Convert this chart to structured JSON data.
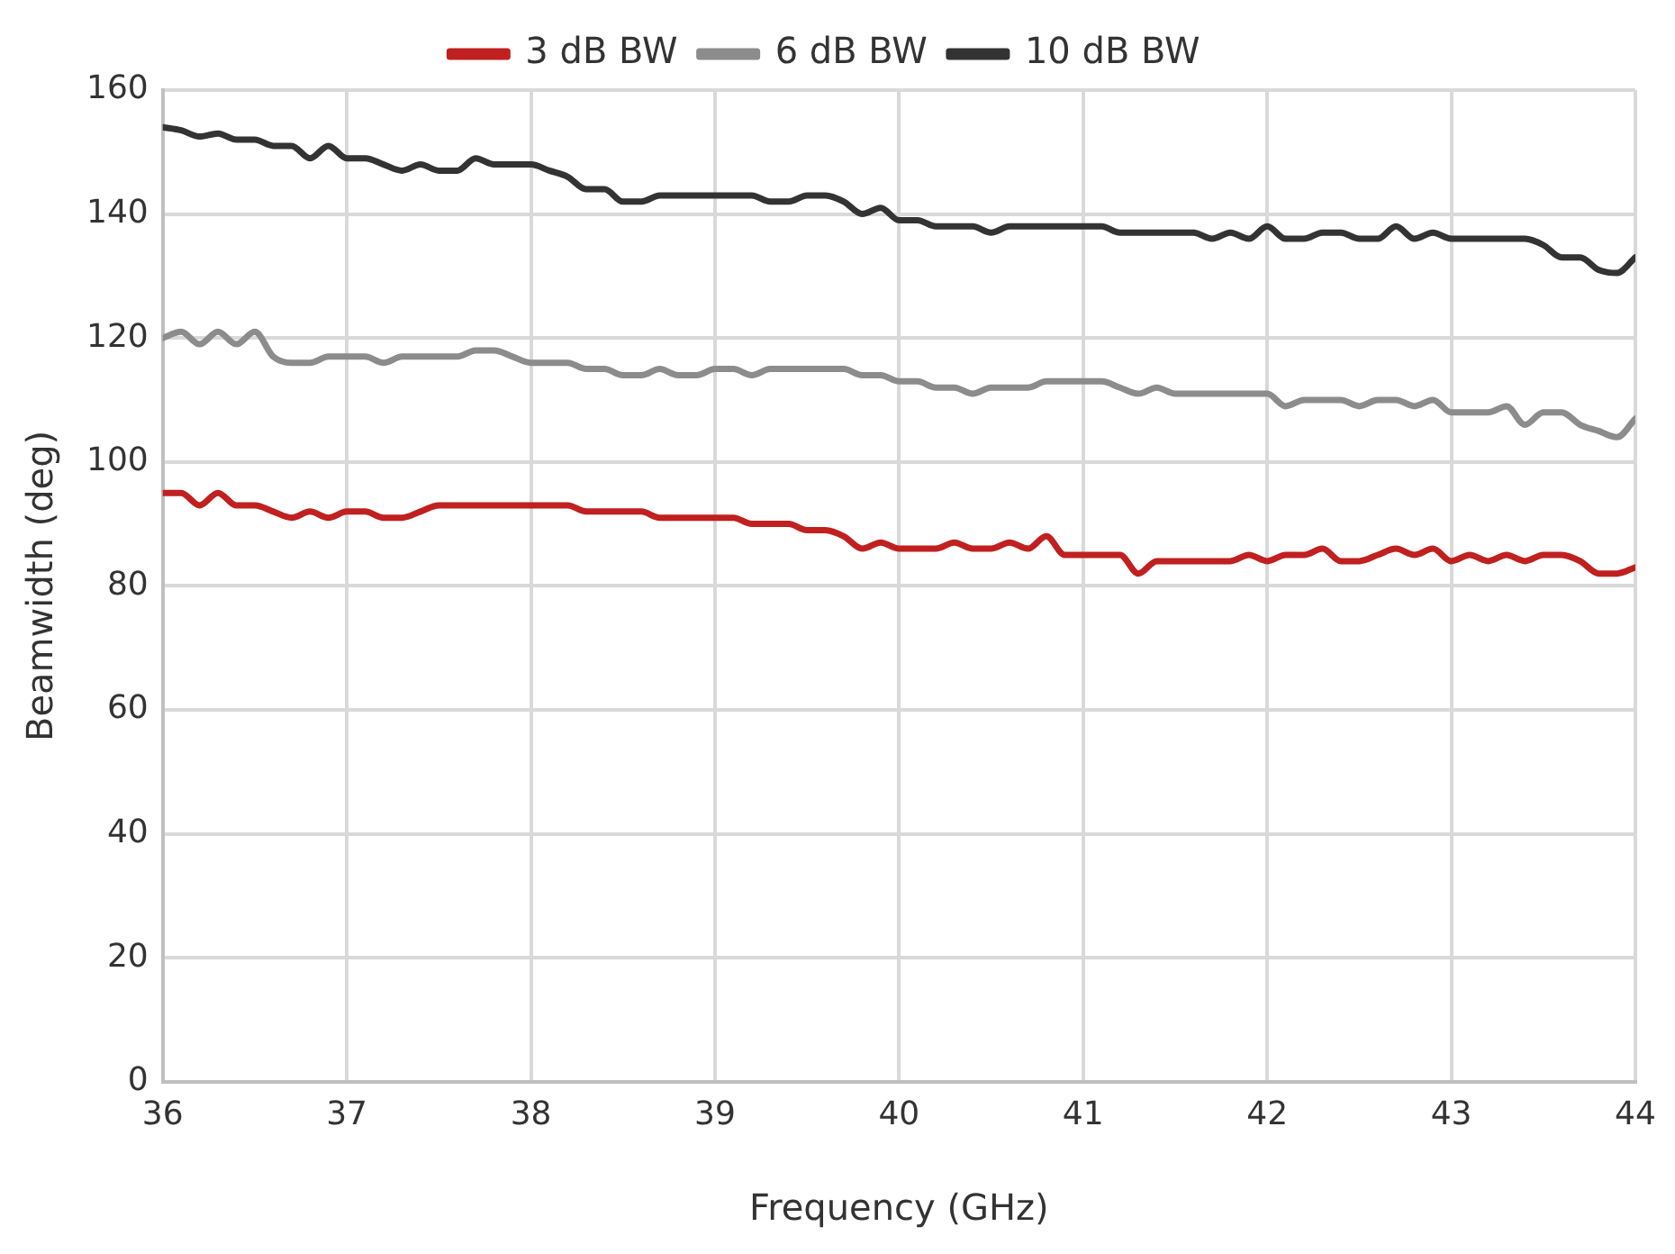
{
  "chart_data": {
    "type": "line",
    "xlabel": "Frequency (GHz)",
    "ylabel": "Beamwidth (deg)",
    "x": [
      36.0,
      36.1,
      36.2,
      36.3,
      36.4,
      36.5,
      36.6,
      36.7,
      36.8,
      36.9,
      37.0,
      37.1,
      37.2,
      37.3,
      37.4,
      37.5,
      37.6,
      37.7,
      37.8,
      37.9,
      38.0,
      38.1,
      38.2,
      38.3,
      38.4,
      38.5,
      38.6,
      38.7,
      38.8,
      38.9,
      39.0,
      39.1,
      39.2,
      39.3,
      39.4,
      39.5,
      39.6,
      39.7,
      39.8,
      39.9,
      40.0,
      40.1,
      40.2,
      40.3,
      40.4,
      40.5,
      40.6,
      40.7,
      40.8,
      40.9,
      41.0,
      41.1,
      41.2,
      41.3,
      41.4,
      41.5,
      41.6,
      41.7,
      41.8,
      41.9,
      42.0,
      42.1,
      42.2,
      42.3,
      42.4,
      42.5,
      42.6,
      42.7,
      42.8,
      42.9,
      43.0,
      43.1,
      43.2,
      43.3,
      43.4,
      43.5,
      43.6,
      43.7,
      43.8,
      43.9,
      44.0
    ],
    "series": [
      {
        "name": "3 dB BW",
        "color": "#c0201f",
        "values": [
          95,
          95,
          93,
          95,
          93,
          93,
          92,
          91,
          92,
          91,
          92,
          92,
          91,
          91,
          92,
          93,
          93,
          93,
          93,
          93,
          93,
          93,
          93,
          92,
          92,
          92,
          92,
          91,
          91,
          91,
          91,
          91,
          90,
          90,
          90,
          89,
          89,
          88,
          86,
          87,
          86,
          86,
          86,
          87,
          86,
          86,
          87,
          86,
          88,
          85,
          85,
          85,
          85,
          82,
          84,
          84,
          84,
          84,
          84,
          85,
          84,
          85,
          85,
          86,
          84,
          84,
          85,
          86,
          85,
          86,
          84,
          85,
          84,
          85,
          84,
          85,
          85,
          84,
          82,
          82,
          83
        ]
      },
      {
        "name": "6 dB BW",
        "color": "#8c8c8c",
        "values": [
          120,
          121,
          119,
          121,
          119,
          121,
          117,
          116,
          116,
          117,
          117,
          117,
          116,
          117,
          117,
          117,
          117,
          118,
          118,
          117,
          116,
          116,
          116,
          115,
          115,
          114,
          114,
          115,
          114,
          114,
          115,
          115,
          114,
          115,
          115,
          115,
          115,
          115,
          114,
          114,
          113,
          113,
          112,
          112,
          111,
          112,
          112,
          112,
          113,
          113,
          113,
          113,
          112,
          111,
          112,
          111,
          111,
          111,
          111,
          111,
          111,
          109,
          110,
          110,
          110,
          109,
          110,
          110,
          109,
          110,
          108,
          108,
          108,
          109,
          106,
          108,
          108,
          106,
          105,
          104,
          107
        ]
      },
      {
        "name": "10 dB BW",
        "color": "#333333",
        "values": [
          154,
          153.5,
          152.5,
          153,
          152,
          152,
          151,
          151,
          149,
          151,
          149,
          149,
          148,
          147,
          148,
          147,
          147,
          149,
          148,
          148,
          148,
          147,
          146,
          144,
          144,
          142,
          142,
          143,
          143,
          143,
          143,
          143,
          143,
          142,
          142,
          143,
          143,
          142,
          140,
          141,
          139,
          139,
          138,
          138,
          138,
          137,
          138,
          138,
          138,
          138,
          138,
          138,
          137,
          137,
          137,
          137,
          137,
          136,
          137,
          136,
          138,
          136,
          136,
          137,
          137,
          136,
          136,
          138,
          136,
          137,
          136,
          136,
          136,
          136,
          136,
          135,
          133,
          133,
          131,
          130.5,
          133
        ]
      }
    ],
    "xlim": [
      36,
      44
    ],
    "xticks": [
      36,
      37,
      38,
      39,
      40,
      41,
      42,
      43,
      44
    ],
    "ylim": [
      0,
      160
    ],
    "yticks": [
      0,
      20,
      40,
      60,
      80,
      100,
      120,
      140,
      160
    ],
    "grid": true,
    "legend": "top",
    "marker": "none",
    "line_style": "solid"
  }
}
